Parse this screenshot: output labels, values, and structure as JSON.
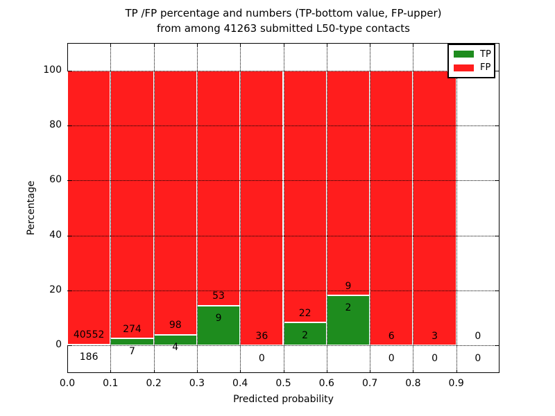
{
  "chart_data": {
    "type": "bar",
    "stacked": true,
    "title_line1": "TP /FP percentage and numbers (TP-bottom value, FP-upper)",
    "title_line2": "from among 41263 submitted L50-type contacts",
    "xlabel": "Predicted probability",
    "ylabel": "Percentage",
    "xlim": [
      0.0,
      1.0
    ],
    "ylim": [
      -10,
      110
    ],
    "bin_width": 0.1,
    "x_ticks": [
      0.0,
      0.1,
      0.2,
      0.3,
      0.4,
      0.5,
      0.6,
      0.7,
      0.8,
      0.9
    ],
    "x_tick_labels": [
      "0.0",
      "0.1",
      "0.2",
      "0.3",
      "0.4",
      "0.5",
      "0.6",
      "0.7",
      "0.8",
      "0.9"
    ],
    "y_ticks": [
      0,
      20,
      40,
      60,
      80,
      100
    ],
    "y_tick_labels": [
      "0",
      "20",
      "40",
      "60",
      "80",
      "100"
    ],
    "grid": "dotted",
    "bins": [
      {
        "x_start": 0.0,
        "tp": 186,
        "fp": 40552,
        "tp_pct": 0.46
      },
      {
        "x_start": 0.1,
        "tp": 7,
        "fp": 274,
        "tp_pct": 2.49
      },
      {
        "x_start": 0.2,
        "tp": 4,
        "fp": 98,
        "tp_pct": 3.92
      },
      {
        "x_start": 0.3,
        "tp": 9,
        "fp": 53,
        "tp_pct": 14.52
      },
      {
        "x_start": 0.4,
        "tp": 0,
        "fp": 36,
        "tp_pct": 0.0
      },
      {
        "x_start": 0.5,
        "tp": 2,
        "fp": 22,
        "tp_pct": 8.33
      },
      {
        "x_start": 0.6,
        "tp": 2,
        "fp": 9,
        "tp_pct": 18.18
      },
      {
        "x_start": 0.7,
        "tp": 0,
        "fp": 6,
        "tp_pct": 0.0
      },
      {
        "x_start": 0.8,
        "tp": 0,
        "fp": 3,
        "tp_pct": 0.0
      },
      {
        "x_start": 0.9,
        "tp": 0,
        "fp": 0,
        "tp_pct": null
      }
    ],
    "legend": [
      {
        "label": "TP",
        "color": "#1e8c1e"
      },
      {
        "label": "FP",
        "color": "#ff1d1d"
      }
    ],
    "colors": {
      "tp_green": "#1e8c1e",
      "fp_red": "#ff1d1d",
      "axis_black": "#000000",
      "background": "#ffffff"
    },
    "legend_position": "upper right"
  }
}
